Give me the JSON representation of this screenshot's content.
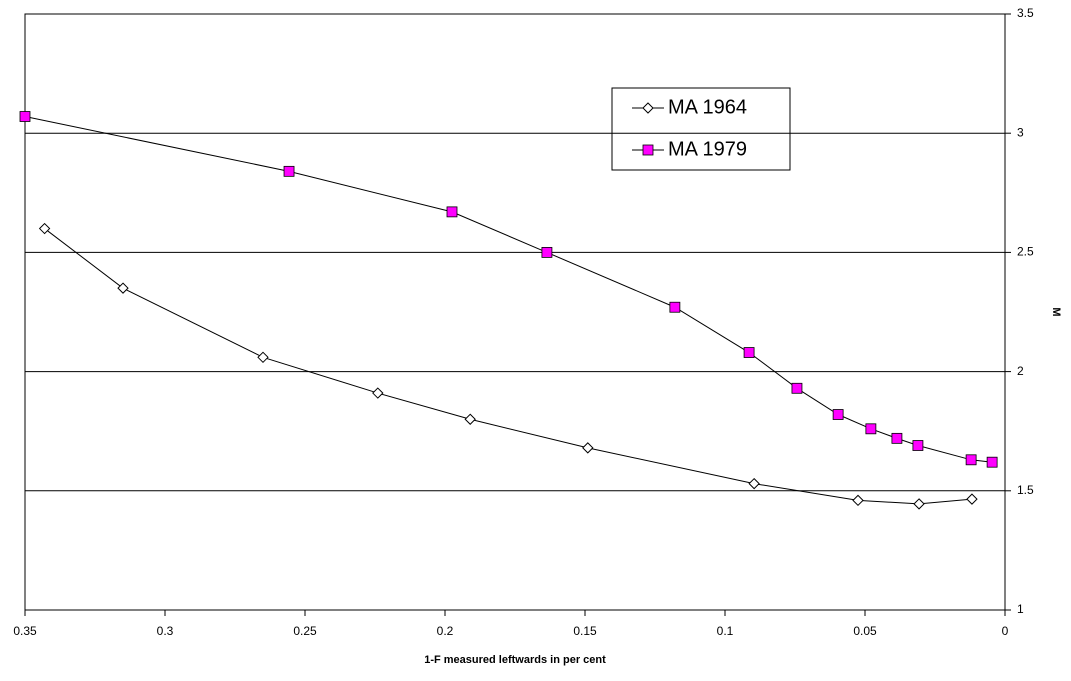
{
  "chart_data": {
    "type": "line",
    "x_label": "1-F measured leftwards in per cent",
    "y_label": "M",
    "xlim": [
      0.35,
      0
    ],
    "xticks": [
      0.35,
      0.3,
      0.25,
      0.2,
      0.15,
      0.1,
      0.05,
      0
    ],
    "ylim": [
      1,
      3.5
    ],
    "yticks": [
      1,
      1.5,
      2,
      2.5,
      3,
      3.5
    ],
    "grid": true,
    "series": [
      {
        "name": "MA 1964",
        "color": "#000000",
        "marker": "diamond",
        "x": [
          0.343,
          0.315,
          0.265,
          0.224,
          0.191,
          0.149,
          0.0896,
          0.0525,
          0.0307,
          0.0118
        ],
        "values": [
          2.6,
          2.35,
          2.06,
          1.91,
          1.8,
          1.68,
          1.53,
          1.46,
          1.445,
          1.465
        ]
      },
      {
        "name": "MA 1979",
        "color": "#ff00ff",
        "marker": "square",
        "x": [
          0.35,
          0.2557,
          0.1975,
          0.1636,
          0.1179,
          0.0914,
          0.0743,
          0.0596,
          0.0479,
          0.0386,
          0.0311,
          0.0121,
          0.0046
        ],
        "values": [
          3.07,
          2.84,
          2.67,
          2.5,
          2.27,
          2.08,
          1.93,
          1.82,
          1.76,
          1.72,
          1.69,
          1.63,
          1.62
        ]
      }
    ]
  }
}
